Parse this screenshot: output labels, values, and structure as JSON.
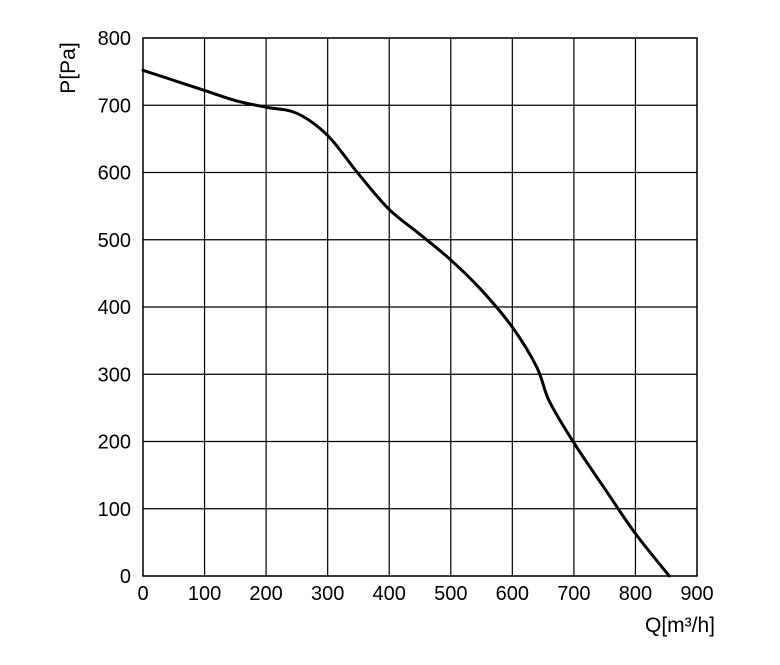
{
  "chart_data": {
    "type": "line",
    "title": "",
    "xlabel": "Q[m³/h]",
    "ylabel": "P[Pa]",
    "xlim": [
      0,
      900
    ],
    "ylim": [
      0,
      800
    ],
    "x_ticks": [
      0,
      100,
      200,
      300,
      400,
      500,
      600,
      700,
      800,
      900
    ],
    "y_ticks": [
      0,
      100,
      200,
      300,
      400,
      500,
      600,
      700,
      800
    ],
    "grid": true,
    "legend": "none",
    "colors": {
      "line": "#000000",
      "grid": "#000000"
    },
    "series": [
      {
        "x": [
          0,
          50,
          100,
          150,
          200,
          250,
          300,
          350,
          400,
          450,
          500,
          550,
          600,
          640,
          660,
          700,
          750,
          800,
          855
        ],
        "values": [
          752,
          737,
          722,
          707,
          697,
          688,
          655,
          598,
          545,
          508,
          470,
          425,
          370,
          310,
          260,
          198,
          130,
          63,
          0
        ]
      }
    ]
  }
}
